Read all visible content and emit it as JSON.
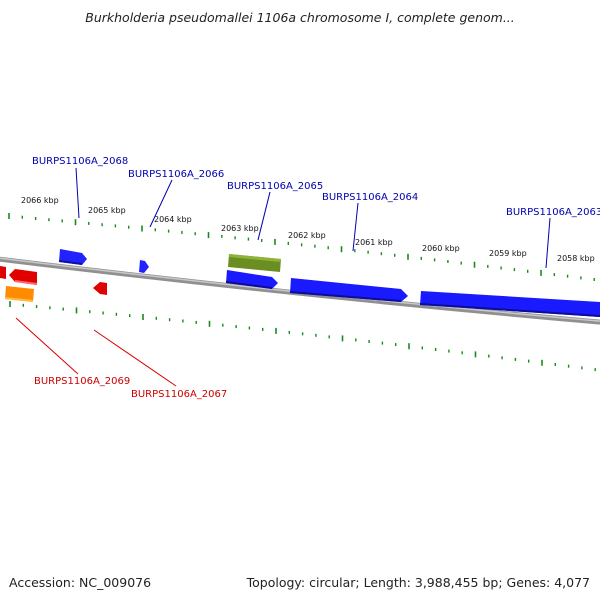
{
  "title": "Burkholderia pseudomallei 1106a chromosome I, complete genom...",
  "footer": {
    "accession": "Accession: NC_009076",
    "summary": "Topology: circular; Length: 3,988,455 bp; Genes: 4,077"
  },
  "ticks": [
    "2066 kbp",
    "2065 kbp",
    "2064 kbp",
    "2063 kbp",
    "2062 kbp",
    "2061 kbp",
    "2060 kbp",
    "2059 kbp",
    "2058 kbp"
  ],
  "genes": {
    "forward": [
      "BURPS1106A_2068",
      "BURPS1106A_2066",
      "BURPS1106A_2065",
      "BURPS1106A_2064",
      "BURPS1106A_2063"
    ],
    "reverse": [
      "BURPS1106A_2069",
      "BURPS1106A_2067"
    ]
  },
  "colors": {
    "forward": "#1a1aff",
    "reverse": "#e00000",
    "rna": "#6b8e23",
    "other": "#ff8c00",
    "forward_label": "#0000b0",
    "reverse_label": "#cc0000",
    "tick": "#1a8a1a",
    "backbone": "#808080"
  }
}
